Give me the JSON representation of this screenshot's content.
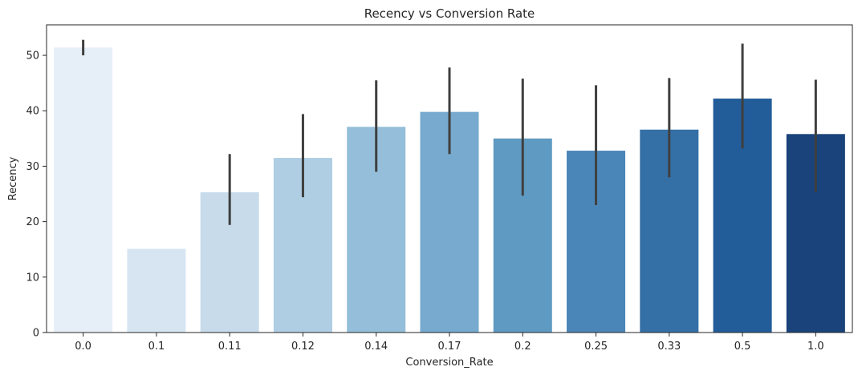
{
  "chart_data": {
    "type": "bar",
    "title": "Recency vs Conversion Rate",
    "xlabel": "Conversion_Rate",
    "ylabel": "Recency",
    "categories": [
      "0.0",
      "0.1",
      "0.11",
      "0.12",
      "0.14",
      "0.17",
      "0.2",
      "0.25",
      "0.33",
      "0.5",
      "1.0"
    ],
    "values": [
      51.4,
      15.1,
      25.3,
      31.5,
      37.1,
      39.8,
      35.0,
      32.8,
      36.6,
      42.2,
      35.8
    ],
    "error_bars": [
      [
        50.0,
        52.8
      ],
      null,
      [
        19.4,
        32.2
      ],
      [
        24.4,
        39.4
      ],
      [
        29.0,
        45.5
      ],
      [
        32.2,
        47.8
      ],
      [
        24.7,
        45.8
      ],
      [
        23.0,
        44.6
      ],
      [
        28.0,
        45.9
      ],
      [
        33.2,
        52.1
      ],
      [
        25.3,
        45.6
      ]
    ],
    "colors": [
      "#e6eef8",
      "#d7e5f3",
      "#c8dbeb",
      "#afcde3",
      "#94bed9",
      "#77aace",
      "#5f9ac2",
      "#4b86b8",
      "#3470a6",
      "#235d99",
      "#19437a"
    ],
    "yticks": [
      0,
      10,
      20,
      30,
      40,
      50
    ],
    "ylim": [
      0,
      55.5
    ],
    "grid": false,
    "legend": "none"
  }
}
